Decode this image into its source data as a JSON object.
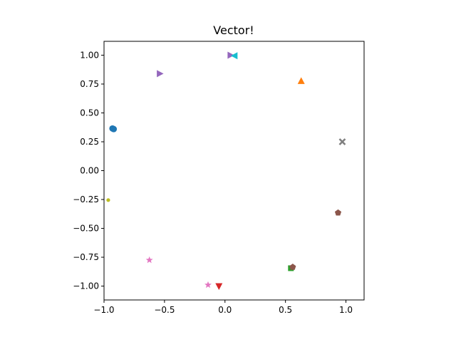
{
  "chart_data": {
    "type": "scatter",
    "title": "Vector!",
    "xlabel": "",
    "ylabel": "",
    "xlim": [
      -1.0,
      1.15
    ],
    "ylim": [
      -1.12,
      1.12
    ],
    "grid": false,
    "xticks": [
      -1.0,
      -0.5,
      0.0,
      0.5,
      1.0
    ],
    "xtick_labels": [
      "−1.0",
      "−0.5",
      "0.0",
      "0.5",
      "1.0"
    ],
    "yticks": [
      -1.0,
      -0.75,
      -0.5,
      -0.25,
      0.0,
      0.25,
      0.5,
      0.75,
      1.0
    ],
    "ytick_labels": [
      "−1.00",
      "−0.75",
      "−0.50",
      "−0.25",
      "0.00",
      "0.25",
      "0.50",
      "0.75",
      "1.00"
    ],
    "points": [
      {
        "x": -0.93,
        "y": 0.365,
        "marker": "circle",
        "color": "#1f77b4"
      },
      {
        "x": -0.92,
        "y": 0.36,
        "marker": "circle",
        "color": "#1f77b4"
      },
      {
        "x": 0.63,
        "y": 0.775,
        "marker": "triangle-up",
        "color": "#ff7f0e"
      },
      {
        "x": 0.545,
        "y": -0.845,
        "marker": "square",
        "color": "#2ca02c"
      },
      {
        "x": -0.05,
        "y": -1.0,
        "marker": "triangle-down",
        "color": "#d62728"
      },
      {
        "x": 0.045,
        "y": 1.0,
        "marker": "triangle-right",
        "color": "#9467bd"
      },
      {
        "x": -0.54,
        "y": 0.84,
        "marker": "triangle-right",
        "color": "#9467bd"
      },
      {
        "x": 0.935,
        "y": -0.365,
        "marker": "pentagon",
        "color": "#8c564b"
      },
      {
        "x": 0.56,
        "y": -0.835,
        "marker": "pentagon",
        "color": "#8c564b"
      },
      {
        "x": -0.625,
        "y": -0.775,
        "marker": "star",
        "color": "#e377c2"
      },
      {
        "x": -0.14,
        "y": -0.99,
        "marker": "star",
        "color": "#e377c2"
      },
      {
        "x": 0.97,
        "y": 0.25,
        "marker": "x",
        "color": "#7f7f7f"
      },
      {
        "x": -0.965,
        "y": -0.255,
        "marker": "dot",
        "color": "#bcbd22"
      },
      {
        "x": 0.08,
        "y": 0.995,
        "marker": "triangle-left",
        "color": "#17becf"
      }
    ]
  }
}
